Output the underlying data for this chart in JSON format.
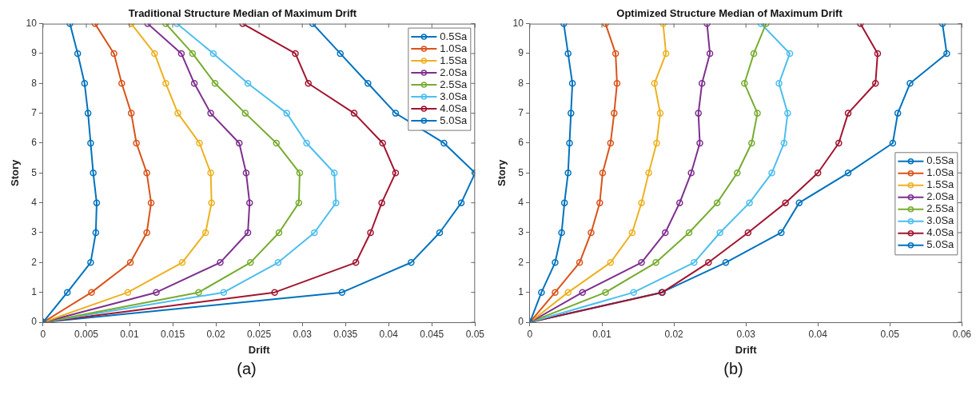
{
  "chart_data": [
    {
      "type": "line",
      "title": "Traditional Structure Median of Maximum Drift",
      "xlabel": "Drift",
      "ylabel": "Story",
      "xlim": [
        0,
        0.05
      ],
      "xticks": [
        0,
        0.005,
        0.01,
        0.015,
        0.02,
        0.025,
        0.03,
        0.035,
        0.04,
        0.045,
        0.05
      ],
      "ylim": [
        0,
        10
      ],
      "yticks": [
        0,
        1,
        2,
        3,
        4,
        5,
        6,
        7,
        8,
        9,
        10
      ],
      "grid": false,
      "legend": "top right",
      "marker": "circle",
      "line_style": "solid",
      "annotations": [
        "(a)"
      ],
      "series": [
        {
          "name": "0.5Sa",
          "color": "#0072bd",
          "x": [
            0,
            0.0028,
            0.0055,
            0.0061,
            0.0062,
            0.0058,
            0.0055,
            0.0052,
            0.0048,
            0.004,
            0.0031
          ],
          "values": [
            0,
            1,
            2,
            3,
            4,
            5,
            6,
            7,
            8,
            9,
            10
          ]
        },
        {
          "name": "1.0Sa",
          "color": "#d95319",
          "x": [
            0,
            0.0056,
            0.0101,
            0.012,
            0.0125,
            0.012,
            0.0108,
            0.0102,
            0.0091,
            0.0082,
            0.006
          ],
          "values": [
            0,
            1,
            2,
            3,
            4,
            5,
            6,
            7,
            8,
            9,
            10
          ]
        },
        {
          "name": "1.5Sa",
          "color": "#edb120",
          "x": [
            0,
            0.0098,
            0.0161,
            0.0188,
            0.0195,
            0.0194,
            0.0181,
            0.0156,
            0.0142,
            0.0129,
            0.0102
          ],
          "values": [
            0,
            1,
            2,
            3,
            4,
            5,
            6,
            7,
            8,
            9,
            10
          ]
        },
        {
          "name": "2.0Sa",
          "color": "#7e2f8e",
          "x": [
            0,
            0.0131,
            0.0205,
            0.0237,
            0.0239,
            0.0235,
            0.0227,
            0.0194,
            0.0175,
            0.016,
            0.0121
          ],
          "values": [
            0,
            1,
            2,
            3,
            4,
            5,
            6,
            7,
            8,
            9,
            10
          ]
        },
        {
          "name": "2.5Sa",
          "color": "#77ac30",
          "x": [
            0,
            0.018,
            0.024,
            0.0273,
            0.0296,
            0.0297,
            0.027,
            0.0234,
            0.0199,
            0.0173,
            0.0142
          ],
          "values": [
            0,
            1,
            2,
            3,
            4,
            5,
            6,
            7,
            8,
            9,
            10
          ]
        },
        {
          "name": "3.0Sa",
          "color": "#4dbeee",
          "x": [
            0,
            0.0209,
            0.0272,
            0.0314,
            0.0339,
            0.0337,
            0.0305,
            0.0282,
            0.0237,
            0.0197,
            0.0155
          ],
          "values": [
            0,
            1,
            2,
            3,
            4,
            5,
            6,
            7,
            8,
            9,
            10
          ]
        },
        {
          "name": "4.0Sa",
          "color": "#a2142f",
          "x": [
            0,
            0.0268,
            0.0362,
            0.0379,
            0.0392,
            0.0408,
            0.0393,
            0.036,
            0.0307,
            0.0292,
            0.0231
          ],
          "values": [
            0,
            1,
            2,
            3,
            4,
            5,
            6,
            7,
            8,
            9,
            10
          ]
        },
        {
          "name": "5.0Sa",
          "color": "#0072bd",
          "x": [
            0,
            0.0346,
            0.0426,
            0.0459,
            0.0484,
            0.05,
            0.0464,
            0.0408,
            0.0376,
            0.0344,
            0.0312
          ],
          "values": [
            0,
            1,
            2,
            3,
            4,
            5,
            6,
            7,
            8,
            9,
            10
          ]
        }
      ]
    },
    {
      "type": "line",
      "title": "Optimized Structure Median of Maximum Drift",
      "xlabel": "Drift",
      "ylabel": "Story",
      "xlim": [
        0,
        0.06
      ],
      "xticks": [
        0,
        0.01,
        0.02,
        0.03,
        0.04,
        0.05,
        0.06
      ],
      "ylim": [
        0,
        10
      ],
      "yticks": [
        0,
        1,
        2,
        3,
        4,
        5,
        6,
        7,
        8,
        9,
        10
      ],
      "grid": false,
      "legend": "right",
      "marker": "circle",
      "line_style": "solid",
      "annotations": [
        "(b)"
      ],
      "series": [
        {
          "name": "0.5Sa",
          "color": "#0072bd",
          "x": [
            0,
            0.0016,
            0.0035,
            0.0044,
            0.0048,
            0.0053,
            0.0055,
            0.0057,
            0.0059,
            0.0053,
            0.0047
          ],
          "values": [
            0,
            1,
            2,
            3,
            4,
            5,
            6,
            7,
            8,
            9,
            10
          ]
        },
        {
          "name": "1.0Sa",
          "color": "#d95319",
          "x": [
            0,
            0.0035,
            0.0069,
            0.0085,
            0.0097,
            0.0101,
            0.0112,
            0.0117,
            0.0121,
            0.0119,
            0.0105
          ],
          "values": [
            0,
            1,
            2,
            3,
            4,
            5,
            6,
            7,
            8,
            9,
            10
          ]
        },
        {
          "name": "1.5Sa",
          "color": "#edb120",
          "x": [
            0,
            0.0053,
            0.0112,
            0.0142,
            0.0155,
            0.0165,
            0.0176,
            0.0181,
            0.0173,
            0.0189,
            0.0185
          ],
          "values": [
            0,
            1,
            2,
            3,
            4,
            5,
            6,
            7,
            8,
            9,
            10
          ]
        },
        {
          "name": "2.0Sa",
          "color": "#7e2f8e",
          "x": [
            0,
            0.0073,
            0.0155,
            0.0188,
            0.0208,
            0.0224,
            0.0236,
            0.0234,
            0.0239,
            0.025,
            0.0246
          ],
          "values": [
            0,
            1,
            2,
            3,
            4,
            5,
            6,
            7,
            8,
            9,
            10
          ]
        },
        {
          "name": "2.5Sa",
          "color": "#77ac30",
          "x": [
            0,
            0.0105,
            0.0175,
            0.0221,
            0.026,
            0.0288,
            0.0308,
            0.0316,
            0.0298,
            0.0311,
            0.0328
          ],
          "values": [
            0,
            1,
            2,
            3,
            4,
            5,
            6,
            7,
            8,
            9,
            10
          ]
        },
        {
          "name": "3.0Sa",
          "color": "#4dbeee",
          "x": [
            0,
            0.0144,
            0.0228,
            0.0264,
            0.0305,
            0.0336,
            0.0353,
            0.0358,
            0.0346,
            0.0361,
            0.0321
          ],
          "values": [
            0,
            1,
            2,
            3,
            4,
            5,
            6,
            7,
            8,
            9,
            10
          ]
        },
        {
          "name": "4.0Sa",
          "color": "#a2142f",
          "x": [
            0,
            0.0184,
            0.0248,
            0.0303,
            0.0355,
            0.04,
            0.0429,
            0.0442,
            0.048,
            0.0483,
            0.0459
          ],
          "values": [
            0,
            1,
            2,
            3,
            4,
            5,
            6,
            7,
            8,
            9,
            10
          ]
        },
        {
          "name": "5.0Sa",
          "color": "#0072bd",
          "x": [
            0,
            0.0183,
            0.0272,
            0.0349,
            0.0374,
            0.0442,
            0.0504,
            0.0511,
            0.0528,
            0.0579,
            0.0573
          ],
          "values": [
            0,
            1,
            2,
            3,
            4,
            5,
            6,
            7,
            8,
            9,
            10
          ]
        }
      ]
    }
  ]
}
